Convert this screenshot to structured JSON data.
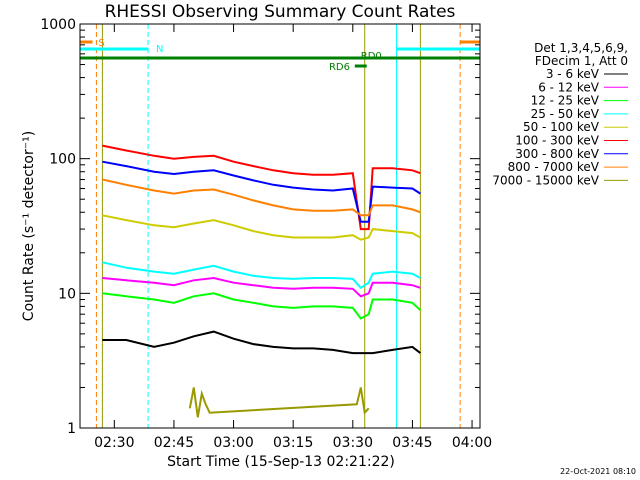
{
  "chart_data": {
    "type": "line",
    "title": "RHESSI Observing Summary Count Rates",
    "xlabel": "Start Time (15-Sep-13 02:21:22)",
    "ylabel": "Count Rate (s⁻¹ detector⁻¹)",
    "x_range": [
      "02:21:22",
      "04:02:00"
    ],
    "ylim": [
      1,
      1000
    ],
    "y_scale": "log",
    "x_ticks": [
      "02:30",
      "02:45",
      "03:00",
      "03:15",
      "03:30",
      "03:45",
      "04:00"
    ],
    "y_ticks": [
      "1",
      "10",
      "100",
      "1000"
    ],
    "legend_header": [
      "Det 1,3,4,5,6,9,",
      "FDecim 1, Att 0"
    ],
    "series": [
      {
        "name": "3 - 6 keV",
        "color": "#000000",
        "x": [
          "02:27",
          "02:33",
          "02:40",
          "02:45",
          "02:50",
          "02:55",
          "03:00",
          "03:05",
          "03:10",
          "03:15",
          "03:20",
          "03:25",
          "03:30",
          "03:35",
          "03:40",
          "03:45",
          "03:47"
        ],
        "y": [
          4.5,
          4.5,
          4.0,
          4.3,
          4.8,
          5.2,
          4.6,
          4.2,
          4.0,
          3.9,
          3.9,
          3.8,
          3.6,
          3.6,
          3.8,
          4.0,
          3.6
        ]
      },
      {
        "name": "6 - 12 keV",
        "color": "#ff00ff",
        "x": [
          "02:27",
          "02:33",
          "02:40",
          "02:45",
          "02:50",
          "02:55",
          "03:00",
          "03:05",
          "03:10",
          "03:15",
          "03:20",
          "03:25",
          "03:30",
          "03:32",
          "03:34",
          "03:35",
          "03:40",
          "03:45",
          "03:47"
        ],
        "y": [
          13,
          12.5,
          12,
          11.5,
          12.5,
          13,
          12,
          11.5,
          11,
          10.8,
          11,
          11,
          10.8,
          9.5,
          10,
          12,
          12,
          11.5,
          11
        ]
      },
      {
        "name": "12 - 25 keV",
        "color": "#00ff00",
        "x": [
          "02:27",
          "02:33",
          "02:40",
          "02:45",
          "02:50",
          "02:55",
          "03:00",
          "03:05",
          "03:10",
          "03:15",
          "03:20",
          "03:25",
          "03:30",
          "03:32",
          "03:34",
          "03:35",
          "03:40",
          "03:45",
          "03:47"
        ],
        "y": [
          10,
          9.5,
          9,
          8.5,
          9.5,
          10,
          9,
          8.5,
          8,
          7.8,
          8,
          8,
          7.8,
          6.5,
          7,
          9,
          9,
          8.5,
          7.5
        ]
      },
      {
        "name": "25 - 50 keV",
        "color": "#00ffff",
        "x": [
          "02:27",
          "02:33",
          "02:40",
          "02:45",
          "02:50",
          "02:55",
          "03:00",
          "03:05",
          "03:10",
          "03:15",
          "03:20",
          "03:25",
          "03:30",
          "03:32",
          "03:34",
          "03:35",
          "03:40",
          "03:45",
          "03:47"
        ],
        "y": [
          17,
          15.5,
          14.5,
          14,
          15,
          16,
          14.5,
          13.5,
          13,
          12.8,
          13,
          13,
          12.8,
          11,
          12,
          14,
          14.5,
          14,
          13
        ]
      },
      {
        "name": "50 - 100 keV",
        "color": "#cccc00",
        "x": [
          "02:27",
          "02:33",
          "02:40",
          "02:45",
          "02:50",
          "02:55",
          "03:00",
          "03:05",
          "03:10",
          "03:15",
          "03:20",
          "03:25",
          "03:30",
          "03:32",
          "03:34",
          "03:35",
          "03:40",
          "03:45",
          "03:47"
        ],
        "y": [
          38,
          35,
          32,
          31,
          33,
          35,
          32,
          29,
          27,
          26,
          26,
          26,
          27,
          25,
          26,
          30,
          29,
          28,
          26
        ]
      },
      {
        "name": "100 - 300 keV",
        "color": "#ff0000",
        "x": [
          "02:27",
          "02:33",
          "02:40",
          "02:45",
          "02:50",
          "02:55",
          "03:00",
          "03:05",
          "03:10",
          "03:15",
          "03:20",
          "03:25",
          "03:30",
          "03:32",
          "03:34",
          "03:35",
          "03:40",
          "03:45",
          "03:47"
        ],
        "y": [
          125,
          115,
          105,
          100,
          103,
          105,
          95,
          88,
          82,
          78,
          76,
          76,
          78,
          30,
          30,
          85,
          85,
          82,
          78
        ]
      },
      {
        "name": "300 - 800 keV",
        "color": "#0000ff",
        "x": [
          "02:27",
          "02:33",
          "02:40",
          "02:45",
          "02:50",
          "02:55",
          "03:00",
          "03:05",
          "03:10",
          "03:15",
          "03:20",
          "03:25",
          "03:30",
          "03:32",
          "03:34",
          "03:35",
          "03:40",
          "03:45",
          "03:47"
        ],
        "y": [
          95,
          88,
          80,
          77,
          80,
          82,
          75,
          69,
          64,
          61,
          59,
          58,
          60,
          34,
          34,
          62,
          61,
          60,
          55
        ]
      },
      {
        "name": "800 - 7000 keV",
        "color": "#ff8000",
        "x": [
          "02:27",
          "02:33",
          "02:40",
          "02:45",
          "02:50",
          "02:55",
          "03:00",
          "03:05",
          "03:10",
          "03:15",
          "03:20",
          "03:25",
          "03:30",
          "03:32",
          "03:34",
          "03:35",
          "03:40",
          "03:45",
          "03:47"
        ],
        "y": [
          70,
          64,
          58,
          55,
          58,
          59,
          54,
          49,
          45,
          42,
          41,
          41,
          42,
          38,
          38,
          45,
          45,
          42,
          40
        ]
      },
      {
        "name": "7000 - 15000 keV",
        "color": "#999900",
        "x": [
          "02:49",
          "02:50",
          "02:51",
          "02:52",
          "02:53",
          "02:54",
          "03:31",
          "03:32",
          "03:33",
          "03:34"
        ],
        "y": [
          1.4,
          2.0,
          1.2,
          1.8,
          1.5,
          1.3,
          1.5,
          2.0,
          1.3,
          1.4
        ]
      }
    ],
    "markers": {
      "S": {
        "label": "S",
        "color": "#ff8000"
      },
      "N": {
        "label": "N",
        "color": "#00ffff"
      },
      "RD0": {
        "label": "RD0",
        "color": "#008000"
      },
      "RD6": {
        "label": "RD6",
        "color": "#008000"
      }
    },
    "grid": false,
    "legend_position": "right"
  },
  "footer_timestamp": "22-Oct-2021 08:10"
}
